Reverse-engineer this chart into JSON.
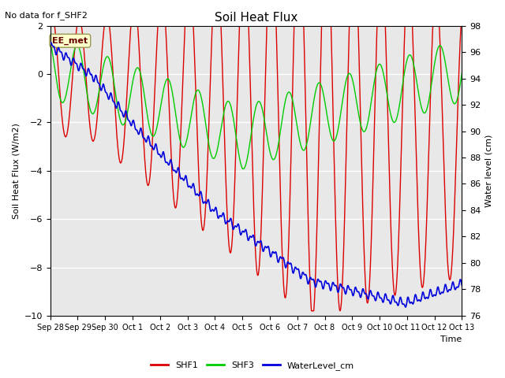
{
  "title": "Soil Heat Flux",
  "no_data_label": "No data for f_SHF2",
  "ee_met_label": "EE_met",
  "xlabel": "Time",
  "ylabel_left": "Soil Heat Flux (W/m2)",
  "ylabel_right": "Water level (cm)",
  "ylim_left": [
    -10,
    2
  ],
  "ylim_right": [
    76,
    98
  ],
  "color_shf1": "#dd0000",
  "color_shf3": "#00cc00",
  "color_water": "#0000dd",
  "bg_color": "#e8e8e8",
  "fig_color": "#ffffff",
  "legend_labels": [
    "SHF1",
    "SHF3",
    "WaterLevel_cm"
  ],
  "xtick_labels": [
    "Sep 28",
    "Sep 29",
    "Sep 30",
    "Oct 1",
    "Oct 2",
    "Oct 3",
    "Oct 4",
    "Oct 5",
    "Oct 6",
    "Oct 7",
    "Oct 8",
    "Oct 9",
    "Oct 10",
    "Oct 11",
    "Oct 12",
    "Oct 13"
  ],
  "xtick_positions": [
    0,
    1,
    2,
    3,
    4,
    5,
    6,
    7,
    8,
    9,
    10,
    11,
    12,
    13,
    14,
    15
  ],
  "yticks_left": [
    -10,
    -8,
    -6,
    -4,
    -2,
    0,
    2
  ],
  "yticks_right": [
    76,
    78,
    80,
    82,
    84,
    86,
    88,
    90,
    92,
    94,
    96,
    98
  ]
}
